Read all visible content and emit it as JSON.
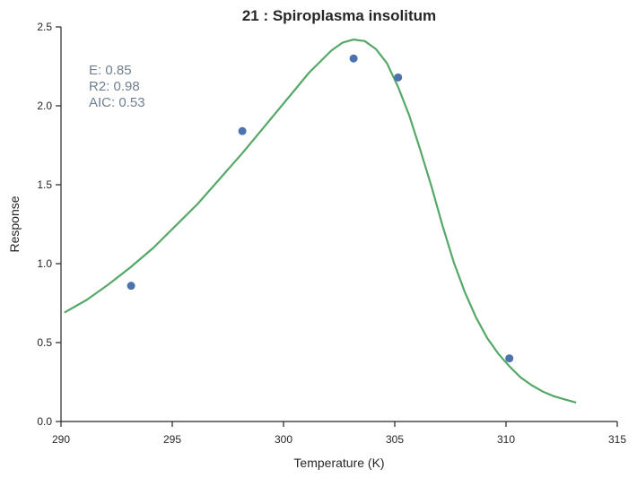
{
  "chart_data": {
    "type": "scatter",
    "title": "21 : Spiroplasma insolitum",
    "xlabel": "Temperature (K)",
    "ylabel": "Response",
    "xlim": [
      290,
      315
    ],
    "ylim": [
      0.0,
      2.5
    ],
    "xticks": [
      290,
      295,
      300,
      305,
      310,
      315
    ],
    "xtick_labels": [
      "290",
      "295",
      "300",
      "305",
      "310",
      "315"
    ],
    "yticks": [
      0.0,
      0.5,
      1.0,
      1.5,
      2.0,
      2.5
    ],
    "ytick_labels": [
      "0.0",
      "0.5",
      "1.0",
      "1.5",
      "2.0",
      "2.5"
    ],
    "grid": false,
    "series": [
      {
        "kind": "points",
        "color": "#4c72b0",
        "x": [
          293.15,
          298.15,
          303.15,
          305.15,
          310.15
        ],
        "y": [
          0.86,
          1.84,
          2.3,
          2.18,
          0.4
        ]
      },
      {
        "kind": "line",
        "color": "#55a868",
        "x": [
          290.15,
          291.15,
          292.15,
          293.15,
          294.15,
          295.15,
          296.15,
          297.15,
          298.15,
          299.15,
          300.15,
          301.15,
          302.15,
          302.65,
          303.15,
          303.65,
          304.15,
          304.65,
          305.15,
          305.65,
          306.15,
          306.65,
          307.15,
          307.65,
          308.15,
          308.65,
          309.15,
          309.65,
          310.15,
          310.65,
          311.15,
          311.65,
          312.15,
          312.65,
          313.15
        ],
        "y": [
          0.69,
          0.77,
          0.87,
          0.98,
          1.1,
          1.24,
          1.38,
          1.54,
          1.7,
          1.87,
          2.04,
          2.21,
          2.35,
          2.4,
          2.42,
          2.41,
          2.36,
          2.27,
          2.12,
          1.94,
          1.72,
          1.49,
          1.24,
          1.01,
          0.82,
          0.66,
          0.53,
          0.43,
          0.35,
          0.28,
          0.23,
          0.19,
          0.16,
          0.14,
          0.12
        ]
      }
    ],
    "annotations": {
      "color": "#708090",
      "lines": [
        "E:  0.85",
        "R2:  0.98",
        "AIC: 0.53"
      ]
    }
  }
}
